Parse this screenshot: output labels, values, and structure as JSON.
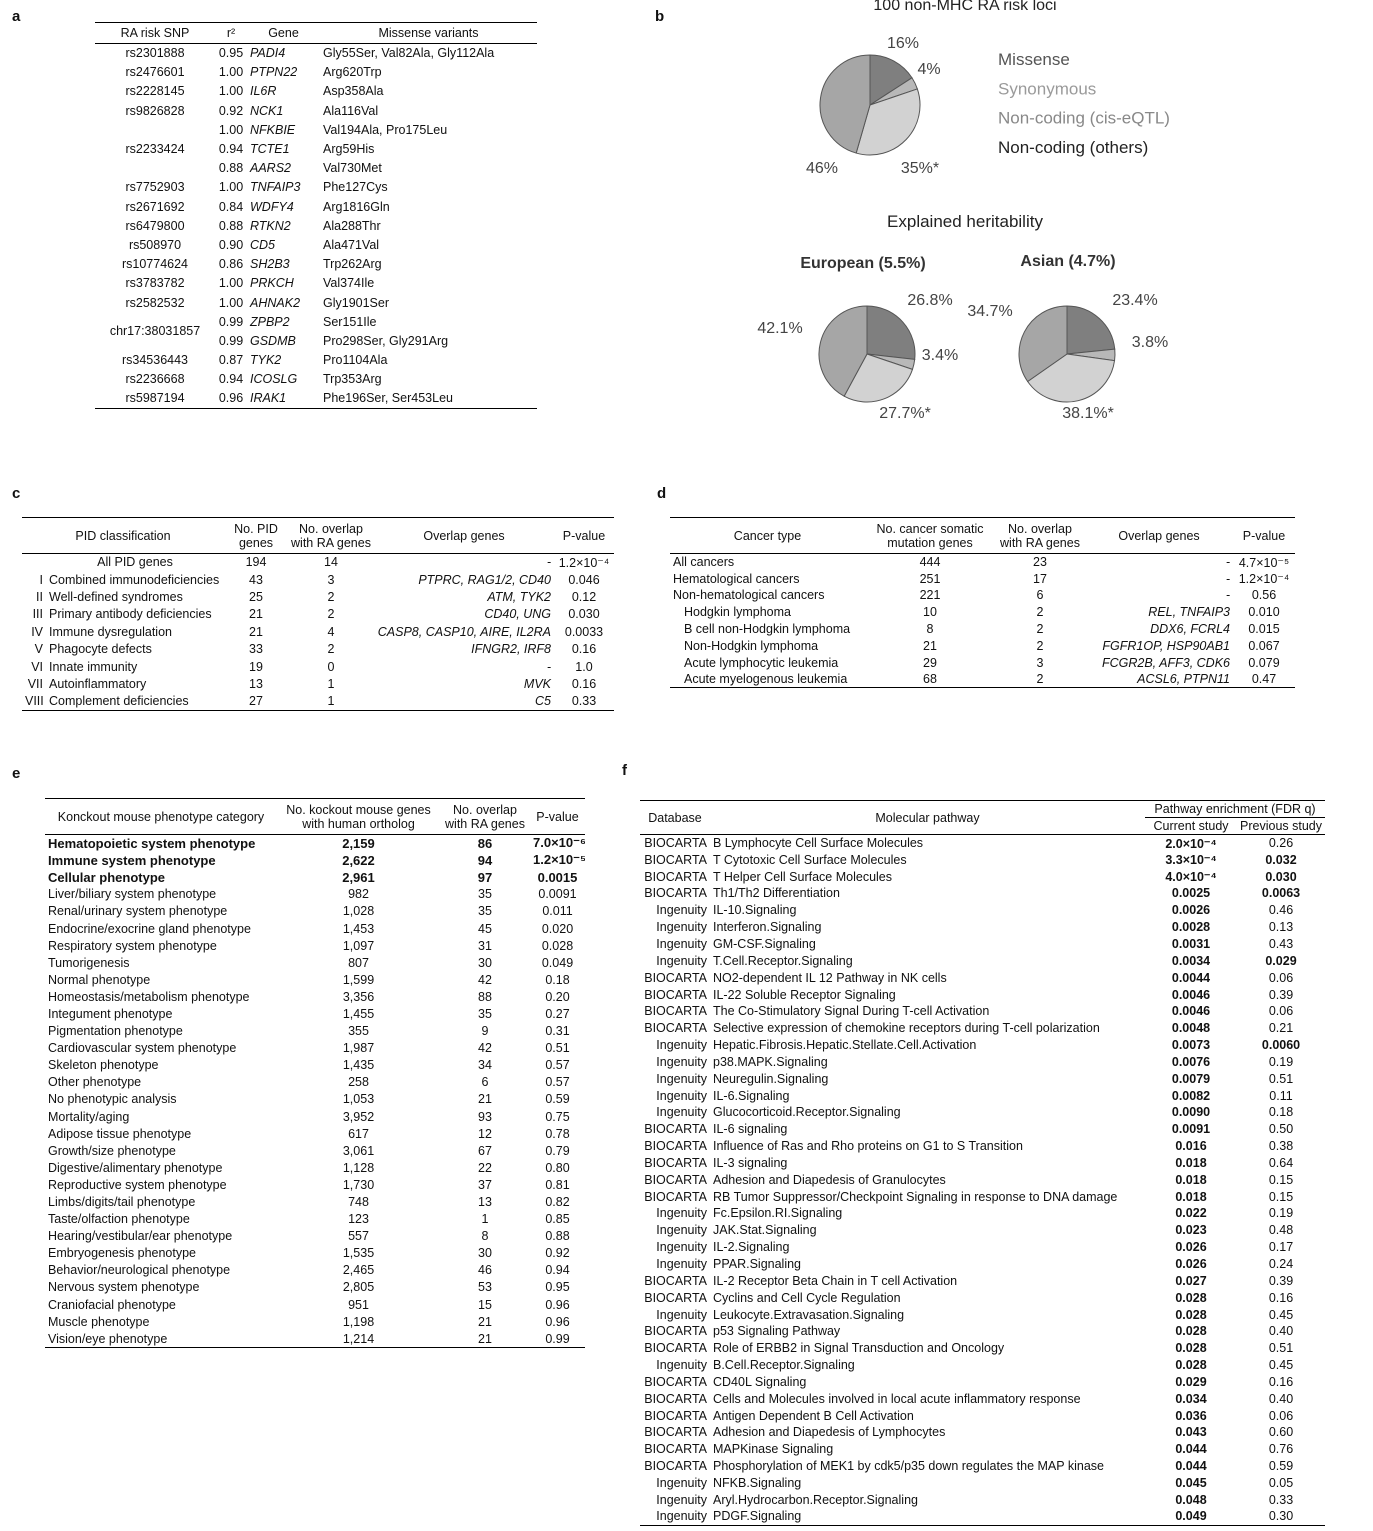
{
  "panel_a": {
    "label": "a",
    "header": [
      "RA risk SNP",
      "r²",
      "Gene",
      "Missense variants"
    ],
    "rows": [
      [
        "rs2301888",
        "0.95",
        "PADI4",
        "Gly55Ser, Val82Ala, Gly112Ala"
      ],
      [
        "rs2476601",
        "1.00",
        "PTPN22",
        "Arg620Trp"
      ],
      [
        "rs2228145",
        "1.00",
        "IL6R",
        "Asp358Ala"
      ],
      [
        "rs9826828",
        "0.92",
        "NCK1",
        "Ala116Val"
      ],
      [
        "rs2233424",
        "1.00",
        "NFKBIE",
        "Val194Ala, Pro175Leu"
      ],
      [
        null,
        "0.94",
        "TCTE1",
        "Arg59His"
      ],
      [
        null,
        "0.88",
        "AARS2",
        "Val730Met"
      ],
      [
        "rs7752903",
        "1.00",
        "TNFAIP3",
        "Phe127Cys"
      ],
      [
        "rs2671692",
        "0.84",
        "WDFY4",
        "Arg1816Gln"
      ],
      [
        "rs6479800",
        "0.88",
        "RTKN2",
        "Ala288Thr"
      ],
      [
        "rs508970",
        "0.90",
        "CD5",
        "Ala471Val"
      ],
      [
        "rs10774624",
        "0.86",
        "SH2B3",
        "Trp262Arg"
      ],
      [
        "rs3783782",
        "1.00",
        "PRKCH",
        "Val374Ile"
      ],
      [
        "rs2582532",
        "1.00",
        "AHNAK2",
        "Gly1901Ser"
      ],
      [
        "chr17:38031857",
        "0.99",
        "ZPBP2",
        "Ser151Ile"
      ],
      [
        null,
        "0.99",
        "GSDMB",
        "Pro298Ser, Gly291Arg"
      ],
      [
        "rs34536443",
        "0.87",
        "TYK2",
        "Pro1104Ala"
      ],
      [
        "rs2236668",
        "0.94",
        "ICOSLG",
        "Trp353Arg"
      ],
      [
        "rs5987194",
        "0.96",
        "IRAK1",
        "Phe196Ser, Ser453Leu"
      ]
    ]
  },
  "panel_b": {
    "label": "b",
    "title": "100 non-MHC RA risk loci",
    "legend": [
      "Missense",
      "Synonymous",
      "Non-coding (cis-eQTL)",
      "Non-coding (others)"
    ],
    "colors": [
      "#7f7f7f",
      "#b8b8b8",
      "#d2d2d2",
      "#a6a6a6"
    ],
    "pie": {
      "values": [
        16,
        4,
        35,
        46
      ],
      "value_labels": [
        "16%",
        "4%",
        "35%*",
        "46%"
      ]
    },
    "heritability": {
      "title": "Explained heritability",
      "pies": [
        {
          "title": "European (5.5%)",
          "values": [
            26.8,
            3.4,
            27.7,
            42.1
          ],
          "value_labels": [
            "26.8%",
            "3.4%",
            "27.7%*",
            "42.1%"
          ]
        },
        {
          "title": "Asian (4.7%)",
          "values": [
            23.4,
            3.8,
            38.1,
            34.7
          ],
          "value_labels": [
            "23.4%",
            "3.8%",
            "38.1%*",
            "34.7%"
          ]
        }
      ]
    }
  },
  "panel_c": {
    "label": "c",
    "header": [
      "PID classification",
      "No. PID genes",
      "No. overlap with RA genes",
      "Overlap genes",
      "P-value"
    ],
    "rows": [
      [
        null,
        "All PID genes",
        "194",
        "14",
        "-",
        "1.2×10⁻⁴"
      ],
      [
        "I",
        "Combined immunodeficiencies",
        "43",
        "3",
        "PTPRC, RAG1/2, CD40",
        "0.046"
      ],
      [
        "II",
        "Well-defined syndromes",
        "25",
        "2",
        "ATM, TYK2",
        "0.12"
      ],
      [
        "III",
        "Primary antibody deficiencies",
        "21",
        "2",
        "CD40, UNG",
        "0.030"
      ],
      [
        "IV",
        "Immune dysregulation",
        "21",
        "4",
        "CASP8, CASP10, AIRE, IL2RA",
        "0.0033"
      ],
      [
        "V",
        "Phagocyte defects",
        "33",
        "2",
        "IFNGR2, IRF8",
        "0.16"
      ],
      [
        "VI",
        "Innate immunity",
        "19",
        "0",
        "-",
        "1.0"
      ],
      [
        "VII",
        "Autoinflammatory",
        "13",
        "1",
        "MVK",
        "0.16"
      ],
      [
        "VIII",
        "Complement deficiencies",
        "27",
        "1",
        "C5",
        "0.33"
      ]
    ]
  },
  "panel_d": {
    "label": "d",
    "header": [
      "Cancer type",
      "No. cancer somatic mutation genes",
      "No. overlap with RA genes",
      "Overlap genes",
      "P-value"
    ],
    "rows": [
      [
        "All cancers",
        "444",
        "23",
        "-",
        "4.7×10⁻⁵"
      ],
      [
        "Hematological cancers",
        "251",
        "17",
        "-",
        "1.2×10⁻⁴"
      ],
      [
        "Non-hematological cancers",
        "221",
        "6",
        "-",
        "0.56"
      ],
      [
        "Hodgkin lymphoma",
        "10",
        "2",
        "REL, TNFAIP3",
        "0.010"
      ],
      [
        "B cell non-Hodgkin lymphoma",
        "8",
        "2",
        "DDX6, FCRL4",
        "0.015"
      ],
      [
        "Non-Hodgkin lymphoma",
        "21",
        "2",
        "FGFR1OP, HSP90AB1",
        "0.067"
      ],
      [
        "Acute lymphocytic leukemia",
        "29",
        "3",
        "FCGR2B, AFF3, CDK6",
        "0.079"
      ],
      [
        "Acute myelogenous leukemia",
        "68",
        "2",
        "ACSL6, PTPN11",
        "0.47"
      ]
    ]
  },
  "panel_e": {
    "label": "e",
    "header": [
      "Konckout mouse phenotype category",
      "No. kockout mouse genes with human ortholog",
      "No. overlap with RA genes",
      "P-value"
    ],
    "rows": [
      [
        "Hematopoietic system phenotype",
        "2,159",
        "86",
        "7.0×10⁻⁶"
      ],
      [
        "Immune system phenotype",
        "2,622",
        "94",
        "1.2×10⁻⁵"
      ],
      [
        "Cellular phenotype",
        "2,961",
        "97",
        "0.0015"
      ],
      [
        "Liver/biliary system phenotype",
        "982",
        "35",
        "0.0091"
      ],
      [
        "Renal/urinary system phenotype",
        "1,028",
        "35",
        "0.011"
      ],
      [
        "Endocrine/exocrine gland phenotype",
        "1,453",
        "45",
        "0.020"
      ],
      [
        "Respiratory system phenotype",
        "1,097",
        "31",
        "0.028"
      ],
      [
        "Tumorigenesis",
        "807",
        "30",
        "0.049"
      ],
      [
        "Normal phenotype",
        "1,599",
        "42",
        "0.18"
      ],
      [
        "Homeostasis/metabolism phenotype",
        "3,356",
        "88",
        "0.20"
      ],
      [
        "Integument phenotype",
        "1,455",
        "35",
        "0.27"
      ],
      [
        "Pigmentation phenotype",
        "355",
        "9",
        "0.31"
      ],
      [
        "Cardiovascular system phenotype",
        "1,987",
        "42",
        "0.51"
      ],
      [
        "Skeleton phenotype",
        "1,435",
        "34",
        "0.57"
      ],
      [
        "Other phenotype",
        "258",
        "6",
        "0.57"
      ],
      [
        "No phenotypic analysis",
        "1,053",
        "21",
        "0.59"
      ],
      [
        "Mortality/aging",
        "3,952",
        "93",
        "0.75"
      ],
      [
        "Adipose tissue phenotype",
        "617",
        "12",
        "0.78"
      ],
      [
        "Growth/size phenotype",
        "3,061",
        "67",
        "0.79"
      ],
      [
        "Digestive/alimentary phenotype",
        "1,128",
        "22",
        "0.80"
      ],
      [
        "Reproductive system phenotype",
        "1,730",
        "37",
        "0.81"
      ],
      [
        "Limbs/digits/tail phenotype",
        "748",
        "13",
        "0.82"
      ],
      [
        "Taste/olfaction phenotype",
        "123",
        "1",
        "0.85"
      ],
      [
        "Hearing/vestibular/ear phenotype",
        "557",
        "8",
        "0.88"
      ],
      [
        "Embryogenesis phenotype",
        "1,535",
        "30",
        "0.92"
      ],
      [
        "Behavior/neurological phenotype",
        "2,465",
        "46",
        "0.94"
      ],
      [
        "Nervous system phenotype",
        "2,805",
        "53",
        "0.95"
      ],
      [
        "Craniofacial phenotype",
        "951",
        "15",
        "0.96"
      ],
      [
        "Muscle phenotype",
        "1,198",
        "21",
        "0.96"
      ],
      [
        "Vision/eye phenotype",
        "1,214",
        "21",
        "0.99"
      ]
    ]
  },
  "panel_f": {
    "label": "f",
    "header": {
      "database": "Database",
      "pathway": "Molecular pathway",
      "enrichment": "Pathway enrichment (FDR q)",
      "current": "Current study",
      "previous": "Previous study"
    },
    "rows": [
      [
        "BIOCARTA",
        "B Lymphocyte Cell Surface Molecules",
        "2.0×10⁻⁴",
        "0.26"
      ],
      [
        "BIOCARTA",
        "T Cytotoxic Cell Surface Molecules",
        "3.3×10⁻⁴",
        "0.032"
      ],
      [
        "BIOCARTA",
        "T Helper Cell Surface Molecules",
        "4.0×10⁻⁴",
        "0.030"
      ],
      [
        "BIOCARTA",
        "Th1/Th2 Differentiation",
        "0.0025",
        "0.0063"
      ],
      [
        "Ingenuity",
        "IL-10.Signaling",
        "0.0026",
        "0.46"
      ],
      [
        "Ingenuity",
        "Interferon.Signaling",
        "0.0028",
        "0.13"
      ],
      [
        "Ingenuity",
        "GM-CSF.Signaling",
        "0.0031",
        "0.43"
      ],
      [
        "Ingenuity",
        "T.Cell.Receptor.Signaling",
        "0.0034",
        "0.029"
      ],
      [
        "BIOCARTA",
        "NO2-dependent IL 12 Pathway in NK cells",
        "0.0044",
        "0.06"
      ],
      [
        "BIOCARTA",
        "IL-22 Soluble Receptor Signaling",
        "0.0046",
        "0.39"
      ],
      [
        "BIOCARTA",
        "The Co-Stimulatory Signal During T-cell Activation",
        "0.0046",
        "0.06"
      ],
      [
        "BIOCARTA",
        "Selective expression of chemokine receptors during T-cell polarization",
        "0.0048",
        "0.21"
      ],
      [
        "Ingenuity",
        "Hepatic.Fibrosis.Hepatic.Stellate.Cell.Activation",
        "0.0073",
        "0.0060"
      ],
      [
        "Ingenuity",
        "p38.MAPK.Signaling",
        "0.0076",
        "0.19"
      ],
      [
        "Ingenuity",
        "Neuregulin.Signaling",
        "0.0079",
        "0.51"
      ],
      [
        "Ingenuity",
        "IL-6.Signaling",
        "0.0082",
        "0.11"
      ],
      [
        "Ingenuity",
        "Glucocorticoid.Receptor.Signaling",
        "0.0090",
        "0.18"
      ],
      [
        "BIOCARTA",
        "IL-6 signaling",
        "0.0091",
        "0.50"
      ],
      [
        "BIOCARTA",
        "Influence of Ras and Rho proteins on G1 to S Transition",
        "0.016",
        "0.38"
      ],
      [
        "BIOCARTA",
        "IL-3 signaling",
        "0.018",
        "0.64"
      ],
      [
        "BIOCARTA",
        "Adhesion and Diapedesis of Granulocytes",
        "0.018",
        "0.15"
      ],
      [
        "BIOCARTA",
        "RB Tumor Suppressor/Checkpoint Signaling in response to DNA damage",
        "0.018",
        "0.15"
      ],
      [
        "Ingenuity",
        "Fc.Epsilon.RI.Signaling",
        "0.022",
        "0.19"
      ],
      [
        "Ingenuity",
        "JAK.Stat.Signaling",
        "0.023",
        "0.48"
      ],
      [
        "Ingenuity",
        "IL-2.Signaling",
        "0.026",
        "0.17"
      ],
      [
        "Ingenuity",
        "PPAR.Signaling",
        "0.026",
        "0.24"
      ],
      [
        "BIOCARTA",
        "IL-2 Receptor Beta Chain in T cell Activation",
        "0.027",
        "0.39"
      ],
      [
        "BIOCARTA",
        "Cyclins and Cell Cycle Regulation",
        "0.028",
        "0.16"
      ],
      [
        "Ingenuity",
        "Leukocyte.Extravasation.Signaling",
        "0.028",
        "0.45"
      ],
      [
        "BIOCARTA",
        "p53 Signaling Pathway",
        "0.028",
        "0.40"
      ],
      [
        "BIOCARTA",
        "Role of ERBB2 in Signal Transduction and Oncology",
        "0.028",
        "0.51"
      ],
      [
        "Ingenuity",
        "B.Cell.Receptor.Signaling",
        "0.028",
        "0.45"
      ],
      [
        "BIOCARTA",
        "CD40L Signaling",
        "0.029",
        "0.16"
      ],
      [
        "BIOCARTA",
        "Cells and Molecules involved in local acute inflammatory response",
        "0.034",
        "0.40"
      ],
      [
        "BIOCARTA",
        "Antigen Dependent B Cell Activation",
        "0.036",
        "0.06"
      ],
      [
        "BIOCARTA",
        "Adhesion and Diapedesis of Lymphocytes",
        "0.043",
        "0.60"
      ],
      [
        "BIOCARTA",
        "MAPKinase Signaling",
        "0.044",
        "0.76"
      ],
      [
        "BIOCARTA",
        "Phosphorylation of MEK1 by cdk5/p35 down regulates the MAP kinase",
        "0.044",
        "0.59"
      ],
      [
        "Ingenuity",
        "NFKB.Signaling",
        "0.045",
        "0.05"
      ],
      [
        "Ingenuity",
        "Aryl.Hydrocarbon.Receptor.Signaling",
        "0.048",
        "0.33"
      ],
      [
        "Ingenuity",
        "PDGF.Signaling",
        "0.049",
        "0.30"
      ]
    ]
  }
}
